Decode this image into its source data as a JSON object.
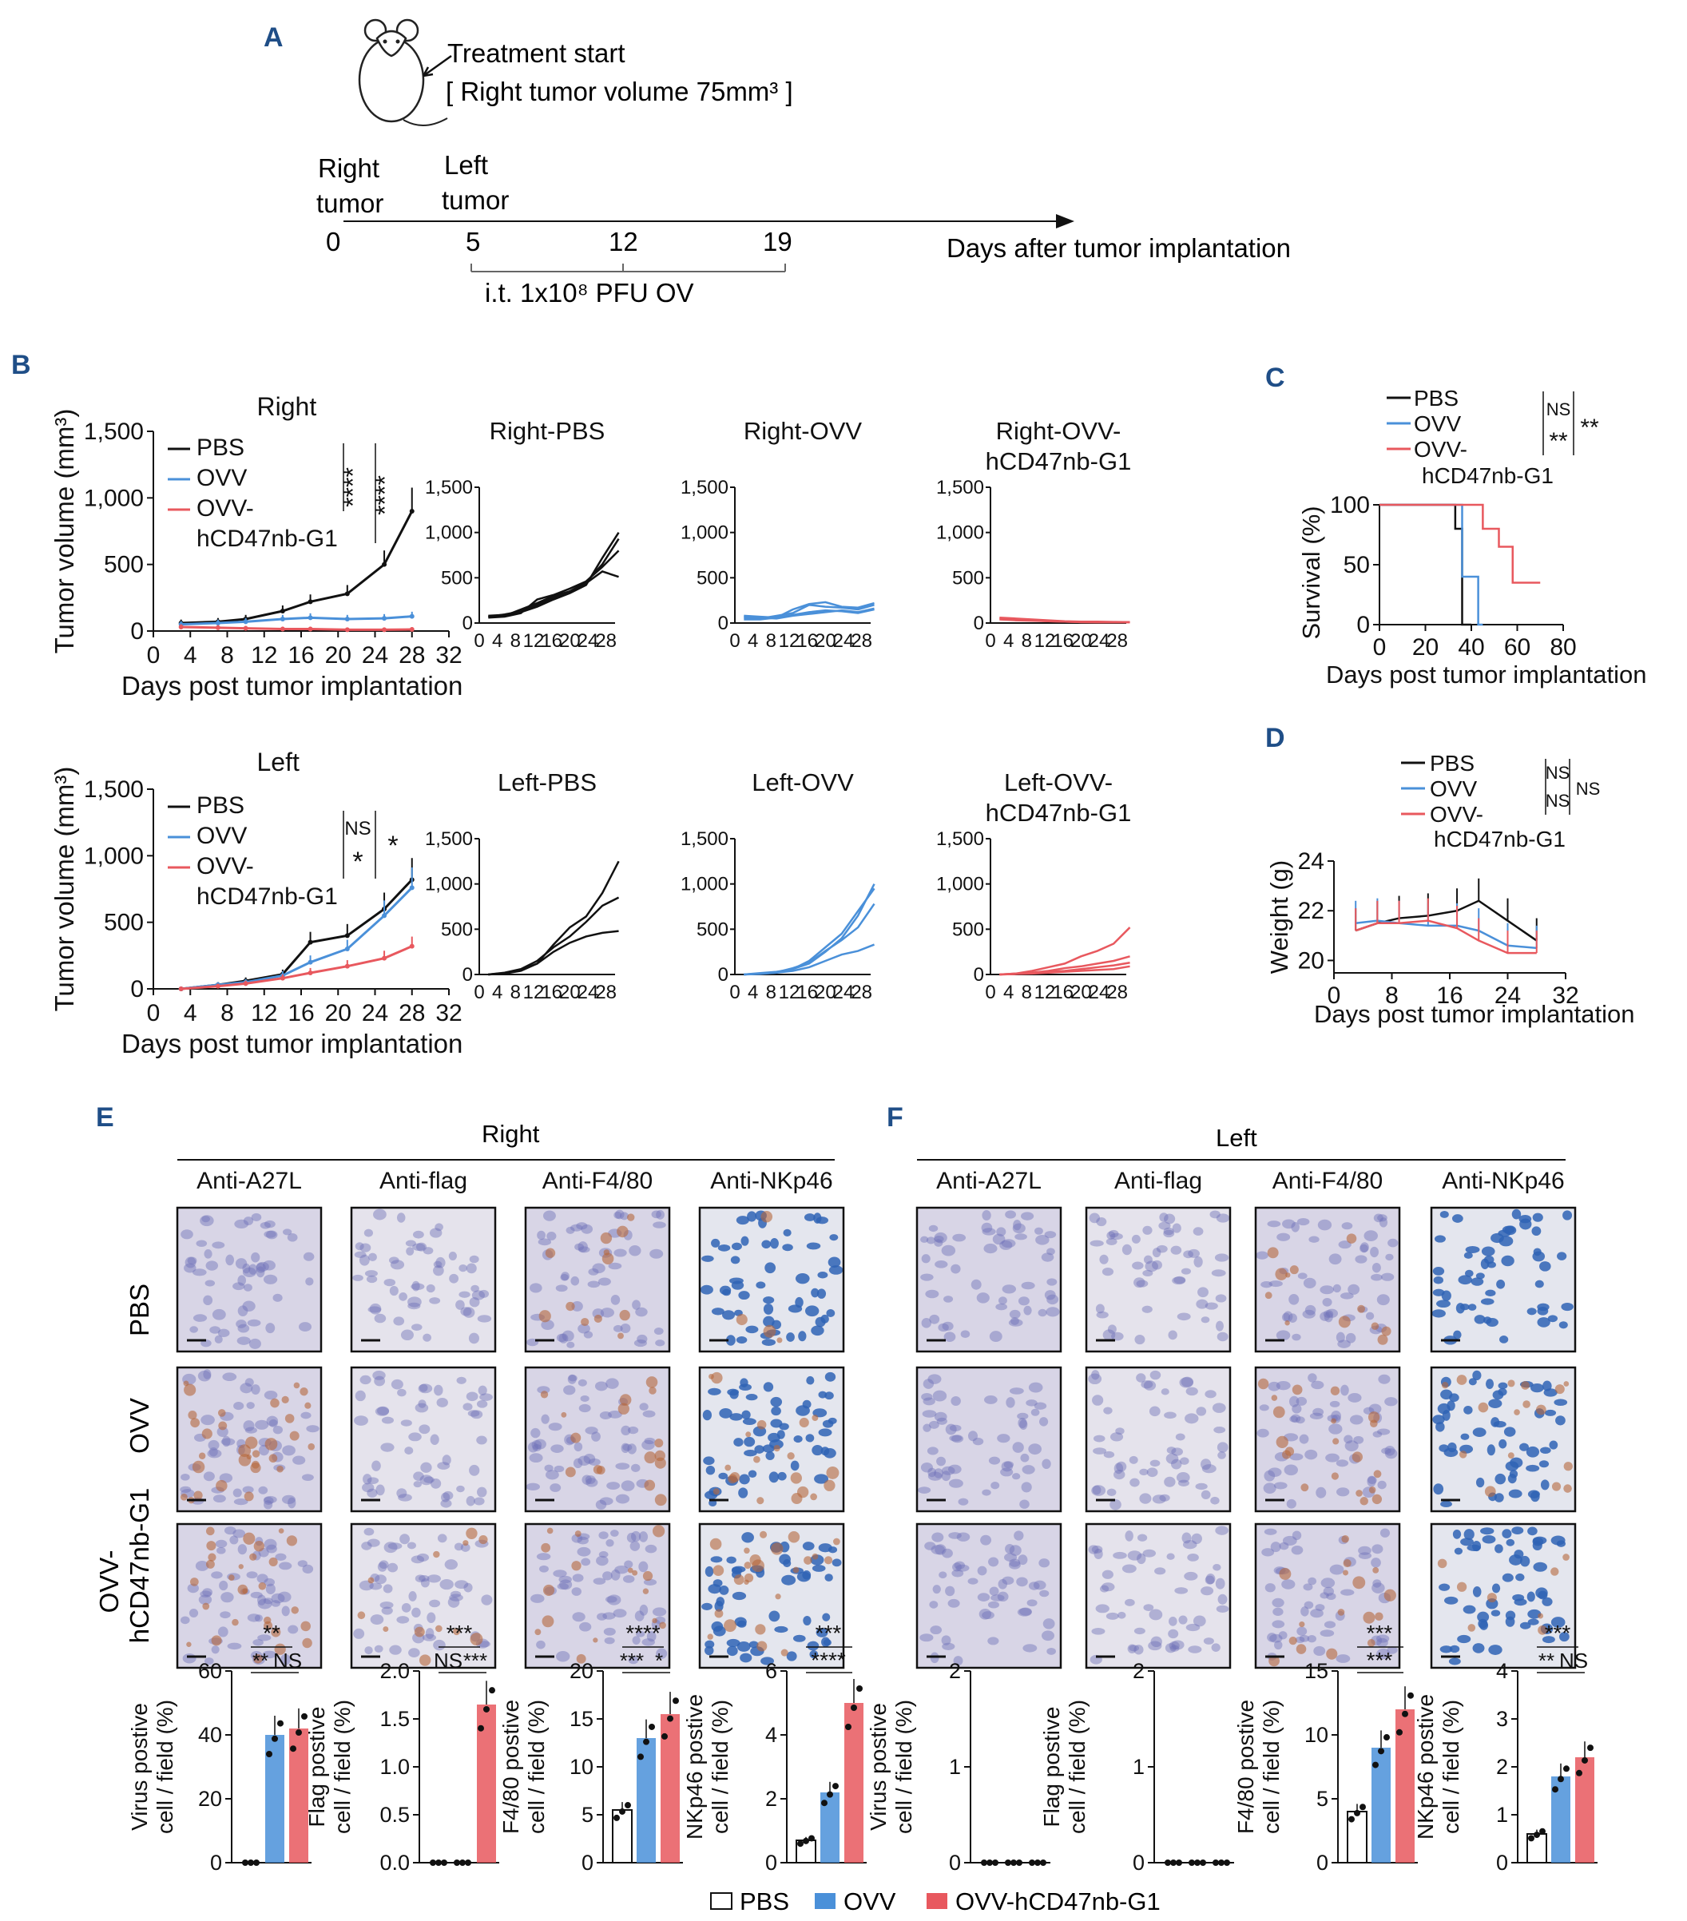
{
  "colors": {
    "pbs": "#111111",
    "ovv": "#4a90d9",
    "ovv_hcd": "#e8585e",
    "panel_label": "#1f4e87",
    "tissue_bg": "#d8d5e6",
    "nuclei": "#6f72b8",
    "brown": "#b5683c",
    "blue_nuclei": "#2f63b5"
  },
  "panelA": {
    "label": "A",
    "treatment_start": "Treatment start",
    "right_tumor_volume": "[ Right tumor volume 75mm³ ]",
    "right_tumor": [
      "Right",
      "tumor"
    ],
    "left_tumor": [
      "Left",
      "tumor"
    ],
    "days": [
      "0",
      "5",
      "12",
      "19"
    ],
    "axis_label": "Days after tumor implantation",
    "injection": "i.t. 1x10⁸ PFU OV"
  },
  "panelB": {
    "label": "B",
    "ylabel": "Tumor volume (mm³)",
    "xlabel": "Days post tumor implantation",
    "yticks": [
      "0",
      "500",
      "1,000",
      "1,500"
    ],
    "xticks": [
      "0",
      "4",
      "8",
      "12",
      "16",
      "20",
      "24",
      "28",
      "32"
    ],
    "small_yticks": [
      "0",
      "500",
      "1,000",
      "1,500"
    ],
    "small_xticks": [
      "0",
      "4",
      "8",
      "12",
      "16",
      "20",
      "24",
      "28"
    ],
    "legend": [
      "PBS",
      "OVV",
      "OVV-",
      "hCD47nb-G1"
    ],
    "right_title": "Right",
    "left_title": "Left",
    "right_sig": [
      "****",
      "****"
    ],
    "left_sig": [
      "NS",
      "*",
      "*"
    ],
    "right_small_titles": [
      "Right-PBS",
      "Right-OVV",
      "Right-OVV-",
      "hCD47nb-G1"
    ],
    "left_small_titles": [
      "Left-PBS",
      "Left-OVV",
      "Left-OVV-",
      "hCD47nb-G1"
    ]
  },
  "panelC": {
    "label": "C",
    "ylabel": "Survival (%)",
    "xlabel": "Days post tumor implantation",
    "yticks": [
      "0",
      "50",
      "100"
    ],
    "xticks": [
      "0",
      "20",
      "40",
      "60",
      "80"
    ],
    "legend": [
      "PBS",
      "OVV",
      "OVV-",
      "hCD47nb-G1"
    ],
    "sig": [
      "NS",
      "**",
      "**"
    ]
  },
  "panelD": {
    "label": "D",
    "ylabel": "Weight (g)",
    "xlabel": "Days post tumor implantation",
    "yticks": [
      "20",
      "22",
      "24"
    ],
    "xticks": [
      "0",
      "8",
      "16",
      "24",
      "32"
    ],
    "legend": [
      "PBS",
      "OVV",
      "OVV-",
      "hCD47nb-G1"
    ],
    "sig": [
      "NS",
      "NS",
      "NS"
    ]
  },
  "panelE": {
    "label": "E",
    "side": "Right",
    "columns": [
      "Anti-A27L",
      "Anti-flag",
      "Anti-F4/80",
      "Anti-NKp46"
    ],
    "rows": [
      "PBS",
      "OVV",
      "OVV-",
      "hCD47nb-G1"
    ]
  },
  "panelF": {
    "label": "F",
    "side": "Left",
    "columns": [
      "Anti-A27L",
      "Anti-flag",
      "Anti-F4/80",
      "Anti-NKp46"
    ]
  },
  "bars_E": [
    {
      "ylabel": [
        "Virus postive",
        "cell / field (%)"
      ],
      "yticks": [
        "0",
        "20",
        "40",
        "60"
      ],
      "sig": [
        "**",
        "**",
        "NS"
      ]
    },
    {
      "ylabel": [
        "Flag postive",
        "cell / field (%)"
      ],
      "yticks": [
        "0.0",
        "0.5",
        "1.0",
        "1.5",
        "2.0"
      ],
      "sig": [
        "***",
        "NS",
        "***"
      ]
    },
    {
      "ylabel": [
        "F4/80 postive",
        "cell / field (%)"
      ],
      "yticks": [
        "0",
        "5",
        "10",
        "15",
        "20"
      ],
      "sig": [
        "****",
        "***",
        "*"
      ]
    },
    {
      "ylabel": [
        "NKp46 postive",
        "cell / field (%)"
      ],
      "yticks": [
        "0",
        "2",
        "4",
        "6"
      ],
      "sig": [
        "***",
        "****"
      ]
    }
  ],
  "bars_F": [
    {
      "ylabel": [
        "Virus postive",
        "cell / field (%)"
      ],
      "yticks": [
        "0",
        "1",
        "2"
      ],
      "sig": []
    },
    {
      "ylabel": [
        "Flag postive",
        "cell / field (%)"
      ],
      "yticks": [
        "0",
        "1",
        "2"
      ],
      "sig": []
    },
    {
      "ylabel": [
        "F4/80 postive",
        "cell / field (%)"
      ],
      "yticks": [
        "0",
        "5",
        "10",
        "15"
      ],
      "sig": [
        "***",
        "***"
      ]
    },
    {
      "ylabel": [
        "NKp46 postive",
        "cell / field (%)"
      ],
      "yticks": [
        "0",
        "1",
        "2",
        "3",
        "4"
      ],
      "sig": [
        "***",
        "**",
        "NS"
      ]
    }
  ],
  "bottom_legend": [
    "PBS",
    "OVV",
    "OVV-hCD47nb-G1"
  ],
  "chart_data": [
    {
      "type": "line",
      "title": "Right",
      "xlabel": "Days post tumor implantation",
      "ylabel": "Tumor volume (mm³)",
      "xlim": [
        0,
        32
      ],
      "ylim": [
        0,
        1500
      ],
      "series": [
        {
          "name": "PBS",
          "x": [
            3,
            7,
            10,
            14,
            17,
            21,
            25,
            28
          ],
          "y": [
            60,
            70,
            90,
            150,
            220,
            280,
            500,
            900
          ]
        },
        {
          "name": "OVV",
          "x": [
            3,
            7,
            10,
            14,
            17,
            21,
            25,
            28
          ],
          "y": [
            50,
            60,
            70,
            90,
            100,
            90,
            95,
            110
          ]
        },
        {
          "name": "OVV-hCD47nb-G1",
          "x": [
            3,
            7,
            10,
            14,
            17,
            21,
            25,
            28
          ],
          "y": [
            30,
            25,
            20,
            15,
            15,
            10,
            10,
            12
          ]
        }
      ]
    },
    {
      "type": "line",
      "title": "Left",
      "xlabel": "Days post tumor implantation",
      "ylabel": "Tumor volume (mm³)",
      "xlim": [
        0,
        32
      ],
      "ylim": [
        0,
        1500
      ],
      "series": [
        {
          "name": "PBS",
          "x": [
            3,
            7,
            10,
            14,
            17,
            21,
            25,
            28
          ],
          "y": [
            0,
            30,
            60,
            110,
            350,
            400,
            600,
            820
          ]
        },
        {
          "name": "OVV",
          "x": [
            3,
            7,
            10,
            14,
            17,
            21,
            25,
            28
          ],
          "y": [
            0,
            30,
            50,
            100,
            200,
            300,
            550,
            760
          ]
        },
        {
          "name": "OVV-hCD47nb-G1",
          "x": [
            3,
            7,
            10,
            14,
            17,
            21,
            25,
            28
          ],
          "y": [
            0,
            20,
            40,
            80,
            120,
            170,
            230,
            320
          ]
        }
      ]
    },
    {
      "type": "line",
      "title": "Survival",
      "xlabel": "Days post tumor implantation",
      "ylabel": "Survival (%)",
      "xlim": [
        0,
        80
      ],
      "ylim": [
        0,
        100
      ],
      "series": [
        {
          "name": "PBS",
          "x": [
            0,
            33,
            33,
            36,
            36,
            40
          ],
          "y": [
            100,
            100,
            80,
            80,
            0,
            0
          ]
        },
        {
          "name": "OVV",
          "x": [
            0,
            36,
            36,
            43,
            43,
            45
          ],
          "y": [
            100,
            100,
            40,
            40,
            0,
            0
          ]
        },
        {
          "name": "OVV-hCD47nb-G1",
          "x": [
            0,
            45,
            45,
            52,
            52,
            58,
            58,
            62,
            62,
            70
          ],
          "y": [
            100,
            100,
            80,
            80,
            65,
            65,
            35,
            35,
            35,
            35
          ]
        }
      ]
    },
    {
      "type": "line",
      "title": "Weight",
      "xlabel": "Days post tumor implantation",
      "ylabel": "Weight (g)",
      "xlim": [
        0,
        32
      ],
      "ylim": [
        19.5,
        24
      ],
      "series": [
        {
          "name": "PBS",
          "x": [
            3,
            6,
            9,
            13,
            17,
            20,
            24,
            28
          ],
          "y": [
            21.2,
            21.5,
            21.7,
            21.8,
            22.0,
            22.4,
            21.6,
            20.8
          ]
        },
        {
          "name": "OVV",
          "x": [
            3,
            6,
            9,
            13,
            17,
            20,
            24,
            28
          ],
          "y": [
            21.5,
            21.6,
            21.5,
            21.4,
            21.4,
            21.2,
            20.6,
            20.5
          ]
        },
        {
          "name": "OVV-hCD47nb-G1",
          "x": [
            3,
            6,
            9,
            13,
            17,
            20,
            24,
            28
          ],
          "y": [
            21.2,
            21.5,
            21.5,
            21.6,
            21.3,
            20.8,
            20.3,
            20.3
          ]
        }
      ]
    },
    {
      "type": "bar",
      "title": "Right: Virus postive cell / field (%)",
      "categories": [
        "PBS",
        "OVV",
        "OVV-hCD47nb-G1"
      ],
      "values": [
        0,
        40,
        42
      ],
      "ylim": [
        0,
        60
      ]
    },
    {
      "type": "bar",
      "title": "Right: Flag postive cell / field (%)",
      "categories": [
        "PBS",
        "OVV",
        "OVV-hCD47nb-G1"
      ],
      "values": [
        0,
        0,
        1.65
      ],
      "ylim": [
        0,
        2
      ]
    },
    {
      "type": "bar",
      "title": "Right: F4/80 postive cell / field (%)",
      "categories": [
        "PBS",
        "OVV",
        "OVV-hCD47nb-G1"
      ],
      "values": [
        5.5,
        13,
        15.5
      ],
      "ylim": [
        0,
        20
      ]
    },
    {
      "type": "bar",
      "title": "Right: NKp46 postive cell / field (%)",
      "categories": [
        "PBS",
        "OVV",
        "OVV-hCD47nb-G1"
      ],
      "values": [
        0.7,
        2.2,
        5
      ],
      "ylim": [
        0,
        6
      ]
    },
    {
      "type": "bar",
      "title": "Left: Virus postive cell / field (%)",
      "categories": [
        "PBS",
        "OVV",
        "OVV-hCD47nb-G1"
      ],
      "values": [
        0,
        0,
        0
      ],
      "ylim": [
        0,
        2
      ]
    },
    {
      "type": "bar",
      "title": "Left: Flag postive cell / field (%)",
      "categories": [
        "PBS",
        "OVV",
        "OVV-hCD47nb-G1"
      ],
      "values": [
        0,
        0,
        0
      ],
      "ylim": [
        0,
        2
      ]
    },
    {
      "type": "bar",
      "title": "Left: F4/80 postive cell / field (%)",
      "categories": [
        "PBS",
        "OVV",
        "OVV-hCD47nb-G1"
      ],
      "values": [
        4,
        9,
        12
      ],
      "ylim": [
        0,
        15
      ]
    },
    {
      "type": "bar",
      "title": "Left: NKp46 postive cell / field (%)",
      "categories": [
        "PBS",
        "OVV",
        "OVV-hCD47nb-G1"
      ],
      "values": [
        0.6,
        1.8,
        2.2
      ],
      "ylim": [
        0,
        4
      ]
    }
  ]
}
